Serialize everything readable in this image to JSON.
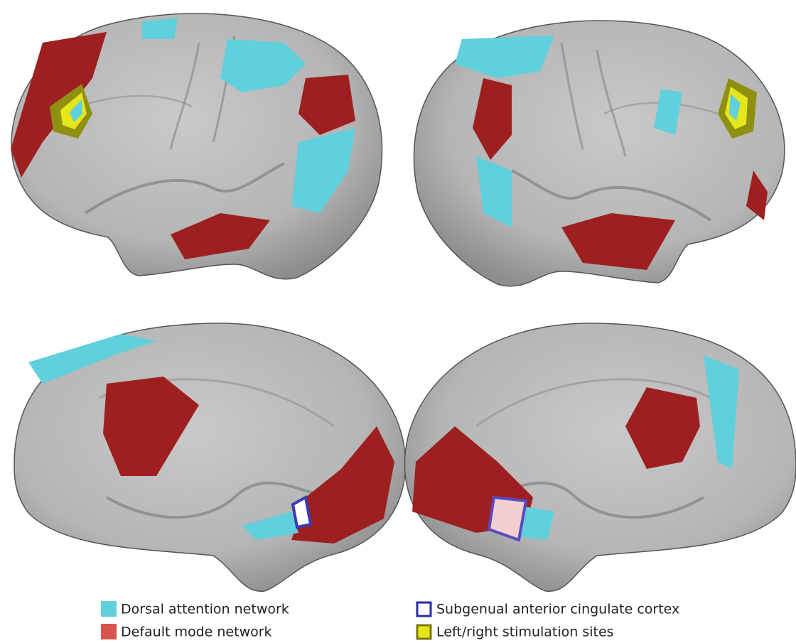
{
  "legend": {
    "items": [
      {
        "label": "Dorsal attention network"
      },
      {
        "label": "Default mode network"
      },
      {
        "label": "Subgenual anterior cingulate cortex"
      },
      {
        "label": "Left/right stimulation sites"
      }
    ]
  }
}
